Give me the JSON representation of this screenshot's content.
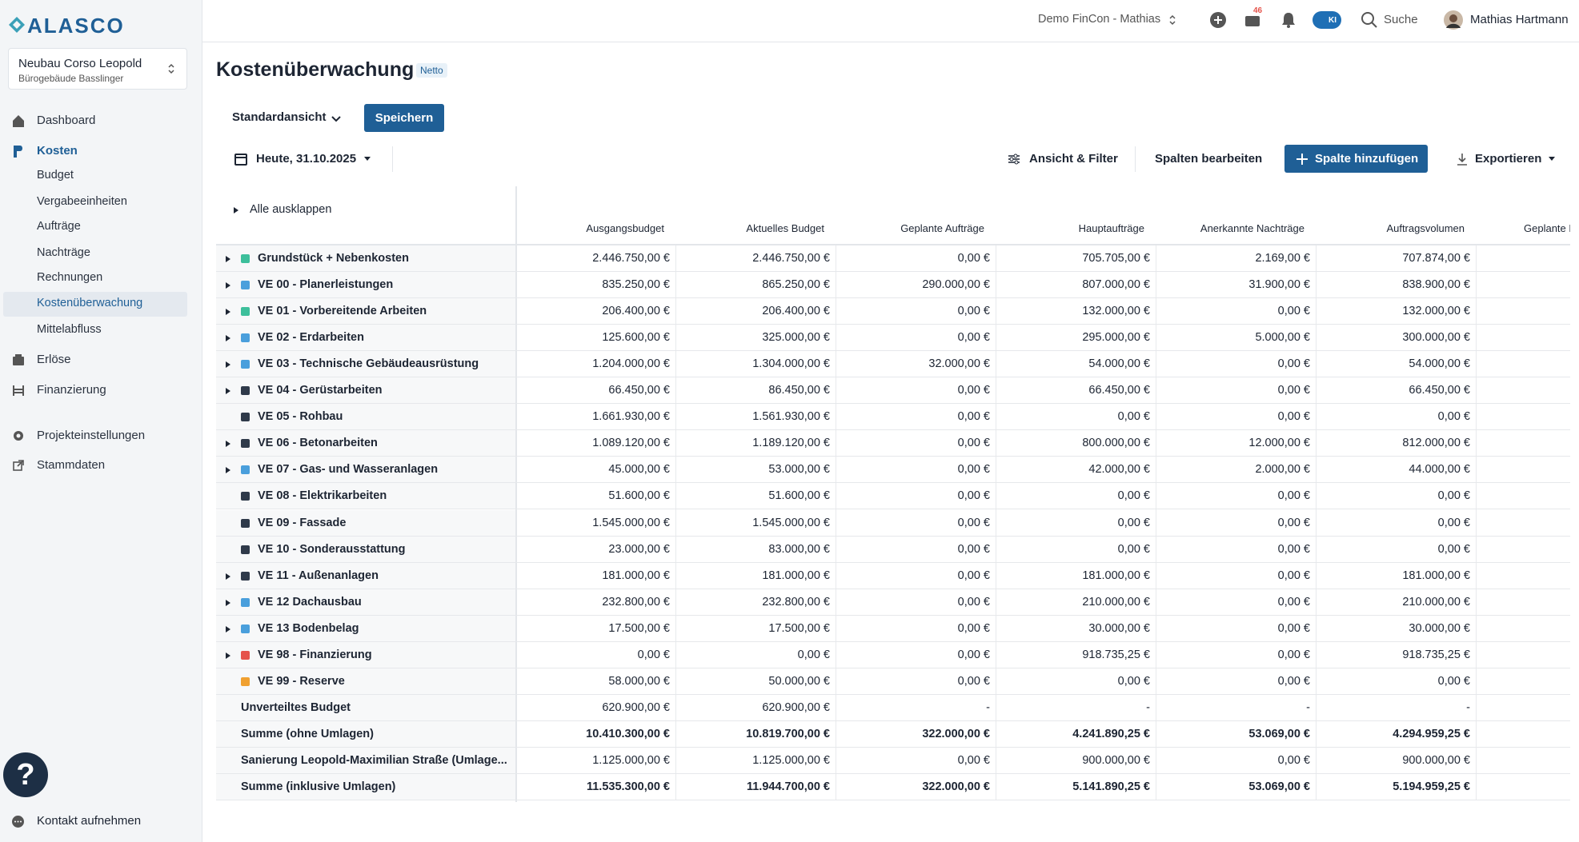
{
  "sidebar": {
    "logo": "ALASCO",
    "project": {
      "name": "Neubau Corso Leopold",
      "subtitle": "Bürogebäude Basslinger"
    },
    "nav": [
      {
        "label": "Dashboard",
        "level": 0
      },
      {
        "label": "Kosten",
        "level": 0,
        "active": true
      },
      {
        "label": "Budget",
        "level": 1
      },
      {
        "label": "Vergabeeinheiten",
        "level": 1
      },
      {
        "label": "Aufträge",
        "level": 1
      },
      {
        "label": "Nachträge",
        "level": 1
      },
      {
        "label": "Rechnungen",
        "level": 1
      },
      {
        "label": "Kostenüberwachung",
        "level": 1,
        "active": true
      },
      {
        "label": "Mittelabfluss",
        "level": 1
      },
      {
        "label": "Erlöse",
        "level": 0
      },
      {
        "label": "Finanzierung",
        "level": 0
      },
      {
        "label": "Projekteinstellungen",
        "level": 0
      },
      {
        "label": "Stammdaten",
        "level": 0
      }
    ],
    "help": "?",
    "contact": "Kontakt aufnehmen"
  },
  "topbar": {
    "workspace": "Demo FinCon - Mathias",
    "badge": "46",
    "ai": "KI",
    "search": "Suche",
    "user": "Mathias Hartmann"
  },
  "header": {
    "title": "Kostenüberwachung",
    "tag": "Netto"
  },
  "toolbar": {
    "view": "Standardansicht",
    "save": "Speichern",
    "date": "Heute, 31.10.2025",
    "filter": "Ansicht & Filter",
    "edit_columns": "Spalten bearbeiten",
    "add_column": "Spalte hinzufügen",
    "export": "Exportieren"
  },
  "table": {
    "expand_all": "Alle ausklappen",
    "columns": [
      "Ausgangsbudget",
      "Aktuelles Budget",
      "Geplante Aufträge",
      "Hauptaufträge",
      "Anerkannte Nachträge",
      "Auftragsvolumen",
      "Geplante F"
    ],
    "rows": [
      {
        "name": "Grundstück + Nebenkosten",
        "color": "#3dbf9b",
        "expandable": true,
        "values": [
          "2.446.750,00 €",
          "2.446.750,00 €",
          "0,00 €",
          "705.705,00 €",
          "2.169,00 €",
          "707.874,00 €"
        ]
      },
      {
        "name": "VE 00 - Planerleistungen",
        "color": "#4a9fdc",
        "expandable": true,
        "values": [
          "835.250,00 €",
          "865.250,00 €",
          "290.000,00 €",
          "807.000,00 €",
          "31.900,00 €",
          "838.900,00 €"
        ]
      },
      {
        "name": "VE 01 - Vorbereitende Arbeiten",
        "color": "#3dbf9b",
        "expandable": true,
        "values": [
          "206.400,00 €",
          "206.400,00 €",
          "0,00 €",
          "132.000,00 €",
          "0,00 €",
          "132.000,00 €"
        ]
      },
      {
        "name": "VE 02 - Erdarbeiten",
        "color": "#4a9fdc",
        "expandable": true,
        "values": [
          "125.600,00 €",
          "325.000,00 €",
          "0,00 €",
          "295.000,00 €",
          "5.000,00 €",
          "300.000,00 €"
        ]
      },
      {
        "name": "VE 03 - Technische Gebäudeausrüstung",
        "color": "#4a9fdc",
        "expandable": true,
        "values": [
          "1.204.000,00 €",
          "1.304.000,00 €",
          "32.000,00 €",
          "54.000,00 €",
          "0,00 €",
          "54.000,00 €"
        ]
      },
      {
        "name": "VE 04 - Gerüstarbeiten",
        "color": "#2f3a4a",
        "expandable": true,
        "values": [
          "66.450,00 €",
          "86.450,00 €",
          "0,00 €",
          "66.450,00 €",
          "0,00 €",
          "66.450,00 €"
        ]
      },
      {
        "name": "VE 05 - Rohbau",
        "color": "#2f3a4a",
        "expandable": false,
        "values": [
          "1.661.930,00 €",
          "1.561.930,00 €",
          "0,00 €",
          "0,00 €",
          "0,00 €",
          "0,00 €"
        ]
      },
      {
        "name": "VE 06 - Betonarbeiten",
        "color": "#2f3a4a",
        "expandable": true,
        "values": [
          "1.089.120,00 €",
          "1.189.120,00 €",
          "0,00 €",
          "800.000,00 €",
          "12.000,00 €",
          "812.000,00 €"
        ]
      },
      {
        "name": "VE 07 - Gas- und Wasseranlagen",
        "color": "#4a9fdc",
        "expandable": true,
        "values": [
          "45.000,00 €",
          "53.000,00 €",
          "0,00 €",
          "42.000,00 €",
          "2.000,00 €",
          "44.000,00 €"
        ]
      },
      {
        "name": "VE 08 - Elektrikarbeiten",
        "color": "#2f3a4a",
        "expandable": false,
        "values": [
          "51.600,00 €",
          "51.600,00 €",
          "0,00 €",
          "0,00 €",
          "0,00 €",
          "0,00 €"
        ]
      },
      {
        "name": "VE 09 - Fassade",
        "color": "#2f3a4a",
        "expandable": false,
        "values": [
          "1.545.000,00 €",
          "1.545.000,00 €",
          "0,00 €",
          "0,00 €",
          "0,00 €",
          "0,00 €"
        ]
      },
      {
        "name": "VE 10 - Sonderausstattung",
        "color": "#2f3a4a",
        "expandable": false,
        "values": [
          "23.000,00 €",
          "83.000,00 €",
          "0,00 €",
          "0,00 €",
          "0,00 €",
          "0,00 €"
        ]
      },
      {
        "name": "VE 11 - Außenanlagen",
        "color": "#2f3a4a",
        "expandable": true,
        "values": [
          "181.000,00 €",
          "181.000,00 €",
          "0,00 €",
          "181.000,00 €",
          "0,00 €",
          "181.000,00 €"
        ]
      },
      {
        "name": "VE 12 Dachausbau",
        "color": "#4a9fdc",
        "expandable": true,
        "values": [
          "232.800,00 €",
          "232.800,00 €",
          "0,00 €",
          "210.000,00 €",
          "0,00 €",
          "210.000,00 €"
        ]
      },
      {
        "name": "VE 13 Bodenbelag",
        "color": "#4a9fdc",
        "expandable": true,
        "values": [
          "17.500,00 €",
          "17.500,00 €",
          "0,00 €",
          "30.000,00 €",
          "0,00 €",
          "30.000,00 €"
        ]
      },
      {
        "name": "VE 98 - Finanzierung",
        "color": "#e5534b",
        "expandable": true,
        "values": [
          "0,00 €",
          "0,00 €",
          "0,00 €",
          "918.735,25 €",
          "0,00 €",
          "918.735,25 €"
        ]
      },
      {
        "name": "VE 99 - Reserve",
        "color": "#f0a030",
        "expandable": false,
        "values": [
          "58.000,00 €",
          "50.000,00 €",
          "0,00 €",
          "0,00 €",
          "0,00 €",
          "0,00 €"
        ]
      },
      {
        "name": "Unverteiltes Budget",
        "expandable": false,
        "values": [
          "620.900,00 €",
          "620.900,00 €",
          "-",
          "-",
          "-",
          "-"
        ]
      },
      {
        "name": "Summe (ohne Umlagen)",
        "expandable": false,
        "emphasis": true,
        "values": [
          "10.410.300,00 €",
          "10.819.700,00 €",
          "322.000,00 €",
          "4.241.890,25 €",
          "53.069,00 €",
          "4.294.959,25 €"
        ]
      },
      {
        "name": "Sanierung Leopold-Maximilian Straße (Umlage...",
        "expandable": false,
        "values": [
          "1.125.000,00 €",
          "1.125.000,00 €",
          "0,00 €",
          "900.000,00 €",
          "0,00 €",
          "900.000,00 €"
        ]
      },
      {
        "name": "Summe (inklusive Umlagen)",
        "expandable": false,
        "emphasis": true,
        "values": [
          "11.535.300,00 €",
          "11.944.700,00 €",
          "322.000,00 €",
          "5.141.890,25 €",
          "53.069,00 €",
          "5.194.959,25 €"
        ]
      }
    ]
  }
}
